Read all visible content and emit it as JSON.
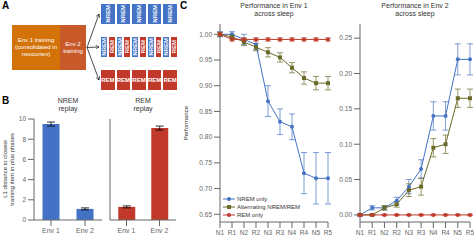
{
  "chart_data": [
    {
      "type": "diagram",
      "panel": "A",
      "boxes": [
        {
          "label": "Env 1 training\n(consolidated in neocortex)",
          "color": "#D4720A"
        },
        {
          "label": "Env 2\ntraining",
          "color": "#C85A2A"
        }
      ],
      "rows": [
        [
          "NREM",
          "NREM",
          "NREM",
          "NREM",
          "NREM"
        ],
        [
          "NREM",
          "REM",
          "NREM",
          "REM",
          "NREM",
          "REM",
          "NREM",
          "REM",
          "NREM",
          "REM"
        ],
        [
          "REM",
          "REM",
          "REM",
          "REM",
          "REM"
        ]
      ],
      "colors": {
        "NREM": "#4472C4",
        "REM": "#C0392B"
      }
    },
    {
      "type": "bar",
      "panel": "B",
      "title": "NREM\nreplay",
      "ylabel": "L1 distance to closest\ntraining item in plus phases",
      "categories": [
        "Env 1",
        "Env 2"
      ],
      "values": [
        9.5,
        1.1
      ],
      "errors": [
        0.2,
        0.1
      ],
      "color": "#4472C4",
      "ylim": [
        0,
        10
      ],
      "yticks": [
        0,
        2,
        4,
        6,
        8,
        10
      ]
    },
    {
      "type": "bar",
      "title": "REM\nreplay",
      "categories": [
        "Env 1",
        "Env 2"
      ],
      "values": [
        1.3,
        9.1
      ],
      "errors": [
        0.1,
        0.2
      ],
      "color": "#C0392B",
      "ylim": [
        0,
        10
      ],
      "tick_labels": "x"
    },
    {
      "type": "line",
      "panel": "C",
      "title": "Performance in Env 1\nacross sleep",
      "ylabel": "Performance",
      "categories": [
        "N1",
        "R1",
        "N2",
        "R2",
        "N3",
        "R3",
        "N4",
        "R4",
        "N5",
        "R5"
      ],
      "ylim": [
        0.635,
        1.02
      ],
      "yticks": [
        0.65,
        {
          "value": 0.7,
          "label": "0.70"
        },
        0.75,
        {
          "value": 0.8,
          "label": "0.80"
        },
        0.85,
        {
          "value": 0.9,
          "label": "0.90"
        },
        0.95,
        {
          "value": 1.0,
          "label": "1.00"
        }
      ],
      "legend": "lower left",
      "series": [
        {
          "name": "NREM only",
          "color": "#4472C4",
          "marker": "circle",
          "values": [
            1.0,
            1.0,
            0.99,
            0.98,
            0.87,
            0.83,
            0.82,
            0.73,
            0.72,
            0.72
          ],
          "errors": [
            0.005,
            0.005,
            0.01,
            0.01,
            0.03,
            0.025,
            0.025,
            0.04,
            0.05,
            0.05
          ]
        },
        {
          "name": "Alternating NREM/REM",
          "color": "#6B6B2A",
          "marker": "square",
          "values": [
            1.0,
            0.995,
            0.985,
            0.975,
            0.965,
            0.955,
            0.935,
            0.915,
            0.905,
            0.905
          ],
          "errors": [
            0.004,
            0.004,
            0.007,
            0.007,
            0.009,
            0.009,
            0.01,
            0.012,
            0.013,
            0.013
          ]
        },
        {
          "name": "REM only",
          "color": "#C0392B",
          "marker": "circle",
          "values": [
            1.0,
            0.99,
            0.99,
            0.99,
            0.99,
            0.99,
            0.99,
            0.99,
            0.99,
            0.99
          ],
          "errors": [
            0.003,
            0.003,
            0.003,
            0.003,
            0.003,
            0.003,
            0.003,
            0.003,
            0.003,
            0.003
          ]
        }
      ]
    },
    {
      "type": "line",
      "title": "Performance in Env 2\nacross sleep",
      "categories": [
        "N1",
        "R1",
        "N2",
        "R2",
        "N3",
        "R3",
        "N4",
        "R4",
        "N5",
        "R5"
      ],
      "ylim": [
        -0.01,
        0.27
      ],
      "yticks": [
        {
          "value": 0.0,
          "label": "0.00"
        },
        0.05,
        {
          "value": 0.1,
          "label": "0.10"
        },
        0.15,
        {
          "value": 0.2,
          "label": "0.20"
        },
        0.25
      ],
      "series": [
        {
          "color": "#4472C4",
          "marker": "circle",
          "values": [
            0.0,
            0.01,
            0.01,
            0.02,
            0.04,
            0.065,
            0.14,
            0.14,
            0.22,
            0.22
          ],
          "errors": [
            0.002,
            0.003,
            0.003,
            0.005,
            0.01,
            0.013,
            0.02,
            0.02,
            0.022,
            0.022
          ]
        },
        {
          "color": "#6B6B2A",
          "marker": "square",
          "values": [
            0.0,
            0.0,
            0.01,
            0.015,
            0.035,
            0.04,
            0.095,
            0.1,
            0.165,
            0.165
          ],
          "errors": [
            0.001,
            0.001,
            0.003,
            0.004,
            0.009,
            0.012,
            0.013,
            0.013,
            0.013,
            0.013
          ]
        },
        {
          "color": "#C0392B",
          "marker": "circle",
          "values": [
            0.0,
            0.0,
            0.0,
            0.0,
            0.0,
            0.0,
            0.0,
            0.0,
            0.0,
            0.0
          ],
          "errors": [
            0.001,
            0.001,
            0.001,
            0.001,
            0.001,
            0.001,
            0.001,
            0.001,
            0.001,
            0.001
          ]
        }
      ]
    }
  ]
}
